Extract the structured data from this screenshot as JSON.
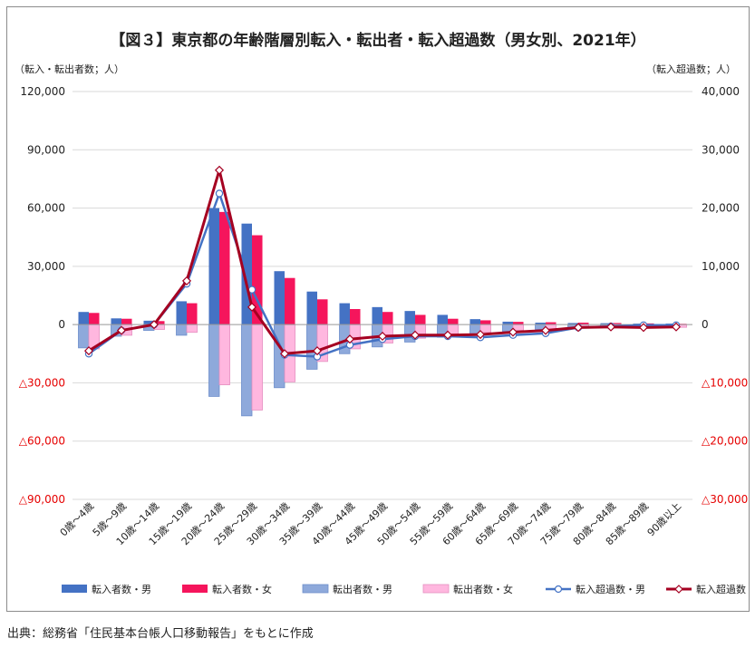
{
  "source_note": "出典：総務省「住民基本台帳人口移動報告」をもとに作成",
  "colors": {
    "in_male": "#4472C4",
    "in_female": "#F5155C",
    "out_male": "#8EA9DB",
    "out_female": "#FFB7DF",
    "net_male": "#4472C4",
    "net_female": "#A50021",
    "negative_label": "#E60000",
    "grid": "#D9D9D9"
  },
  "chart_data": {
    "type": "bar",
    "title": "【図３】東京都の年齢階層別転入・転出者・転入超過数（男女別、2021年）",
    "left_axis_title": "（転入・転出者数；人）",
    "right_axis_title": "（転入超過数；人）",
    "ylim_left": [
      -90000,
      120000
    ],
    "ylim_right": [
      -30000,
      40000
    ],
    "left_ticks": [
      {
        "value": 120000,
        "label": "120,000"
      },
      {
        "value": 90000,
        "label": "90,000"
      },
      {
        "value": 60000,
        "label": "60,000"
      },
      {
        "value": 30000,
        "label": "30,000"
      },
      {
        "value": 0,
        "label": "0"
      },
      {
        "value": -30000,
        "label": "△30,000"
      },
      {
        "value": -60000,
        "label": "△60,000"
      },
      {
        "value": -90000,
        "label": "△90,000"
      }
    ],
    "right_ticks": [
      {
        "value": 40000,
        "label": "40,000"
      },
      {
        "value": 30000,
        "label": "30,000"
      },
      {
        "value": 20000,
        "label": "20,000"
      },
      {
        "value": 10000,
        "label": "10,000"
      },
      {
        "value": 0,
        "label": "0"
      },
      {
        "value": -10000,
        "label": "△10,000"
      },
      {
        "value": -20000,
        "label": "△20,000"
      },
      {
        "value": -30000,
        "label": "△30,000"
      }
    ],
    "categories": [
      "0歳～4歳",
      "5歳～9歳",
      "10歳～14歳",
      "15歳～19歳",
      "20歳～24歳",
      "25歳～29歳",
      "30歳～34歳",
      "35歳～39歳",
      "40歳～44歳",
      "45歳～49歳",
      "50歳～54歳",
      "55歳～59歳",
      "60歳～64歳",
      "65歳～69歳",
      "70歳～74歳",
      "75歳～79歳",
      "80歳～84歳",
      "85歳～89歳",
      "90歳以上"
    ],
    "series": [
      {
        "name": "転入者数・男",
        "kind": "bar",
        "axis": "left",
        "color_key": "in_male",
        "values": [
          6500,
          3200,
          2000,
          12000,
          60000,
          52000,
          27500,
          17000,
          11000,
          9000,
          7000,
          5000,
          2800,
          1500,
          1000,
          800,
          700,
          500,
          500
        ]
      },
      {
        "name": "転入者数・女",
        "kind": "bar",
        "axis": "left",
        "color_key": "in_female",
        "values": [
          6000,
          3000,
          1800,
          11000,
          58000,
          46000,
          24000,
          13000,
          8000,
          6500,
          5000,
          3000,
          2200,
          1400,
          1200,
          1000,
          800,
          600,
          400
        ]
      },
      {
        "name": "転出者数・男",
        "kind": "bar",
        "axis": "left",
        "color_key": "out_male",
        "values": [
          -12000,
          -6000,
          -3000,
          -5500,
          -37000,
          -47000,
          -32500,
          -23000,
          -15000,
          -11500,
          -9000,
          -6500,
          -5000,
          -3500,
          -2500,
          -1500,
          -1000,
          -800,
          -500
        ]
      },
      {
        "name": "転出者数・女",
        "kind": "bar",
        "axis": "left",
        "color_key": "out_female",
        "values": [
          -12500,
          -5500,
          -2500,
          -4000,
          -31000,
          -44000,
          -29500,
          -19000,
          -12500,
          -9500,
          -7000,
          -5000,
          -4000,
          -3000,
          -2200,
          -1800,
          -1400,
          -1100,
          -1400
        ]
      },
      {
        "name": "転入超過数・男",
        "kind": "line",
        "axis": "right",
        "color_key": "net_male",
        "values": [
          -5000,
          -1000,
          0,
          7000,
          22500,
          6000,
          -5200,
          -5500,
          -3500,
          -2500,
          -2000,
          -2000,
          -2200,
          -1800,
          -1500,
          -500,
          -300,
          -100,
          -100
        ]
      },
      {
        "name": "転入超過数・女",
        "kind": "line",
        "axis": "right",
        "color_key": "net_female",
        "values": [
          -4500,
          -1000,
          0,
          7500,
          26500,
          3000,
          -5000,
          -4500,
          -2500,
          -2000,
          -1800,
          -1800,
          -1700,
          -1300,
          -1000,
          -500,
          -400,
          -500,
          -400
        ]
      }
    ]
  }
}
